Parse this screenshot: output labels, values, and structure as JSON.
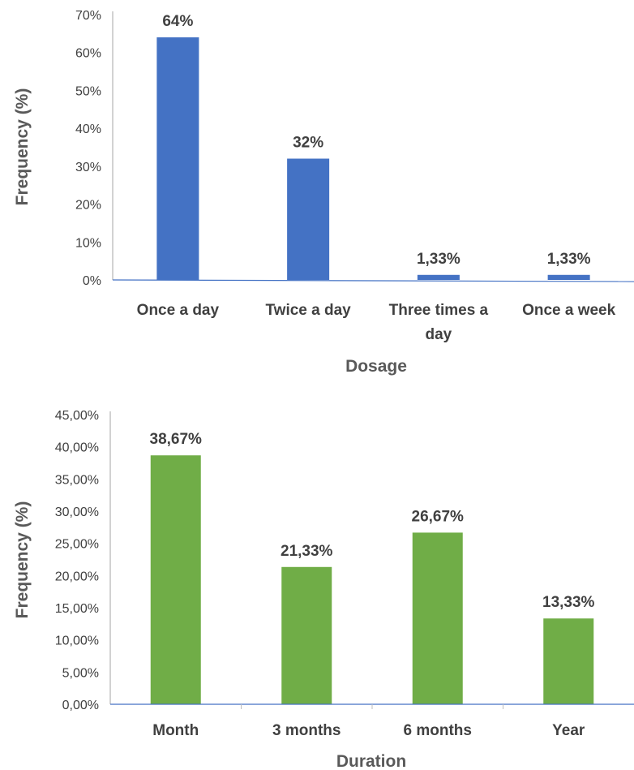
{
  "chart_data": [
    {
      "type": "bar",
      "xlabel": "Dosage",
      "ylabel": "Frequency (%)",
      "ylim": [
        0,
        70
      ],
      "yticks": [
        "0%",
        "10%",
        "20%",
        "30%",
        "40%",
        "50%",
        "60%",
        "70%"
      ],
      "categories": [
        [
          "Once a day"
        ],
        [
          "Twice a day"
        ],
        [
          "Three times a",
          "day"
        ],
        [
          "Once a week"
        ]
      ],
      "values": [
        64,
        32,
        1.33,
        1.33
      ],
      "data_labels": [
        "64%",
        "32%",
        "1,33%",
        "1,33%"
      ],
      "color": "#4472C4",
      "grid": false
    },
    {
      "type": "bar",
      "xlabel": "Duration",
      "ylabel": "Frequency (%)",
      "ylim": [
        0,
        45
      ],
      "yticks": [
        "0,00%",
        "5,00%",
        "10,00%",
        "15,00%",
        "20,00%",
        "25,00%",
        "30,00%",
        "35,00%",
        "40,00%",
        "45,00%"
      ],
      "categories": [
        [
          "Month"
        ],
        [
          "3 months"
        ],
        [
          "6 months"
        ],
        [
          "Year"
        ]
      ],
      "values": [
        38.67,
        21.33,
        26.67,
        13.33
      ],
      "data_labels": [
        "38,67%",
        "21,33%",
        "26,67%",
        "13,33%"
      ],
      "color": "#70AD47",
      "grid": false
    }
  ]
}
